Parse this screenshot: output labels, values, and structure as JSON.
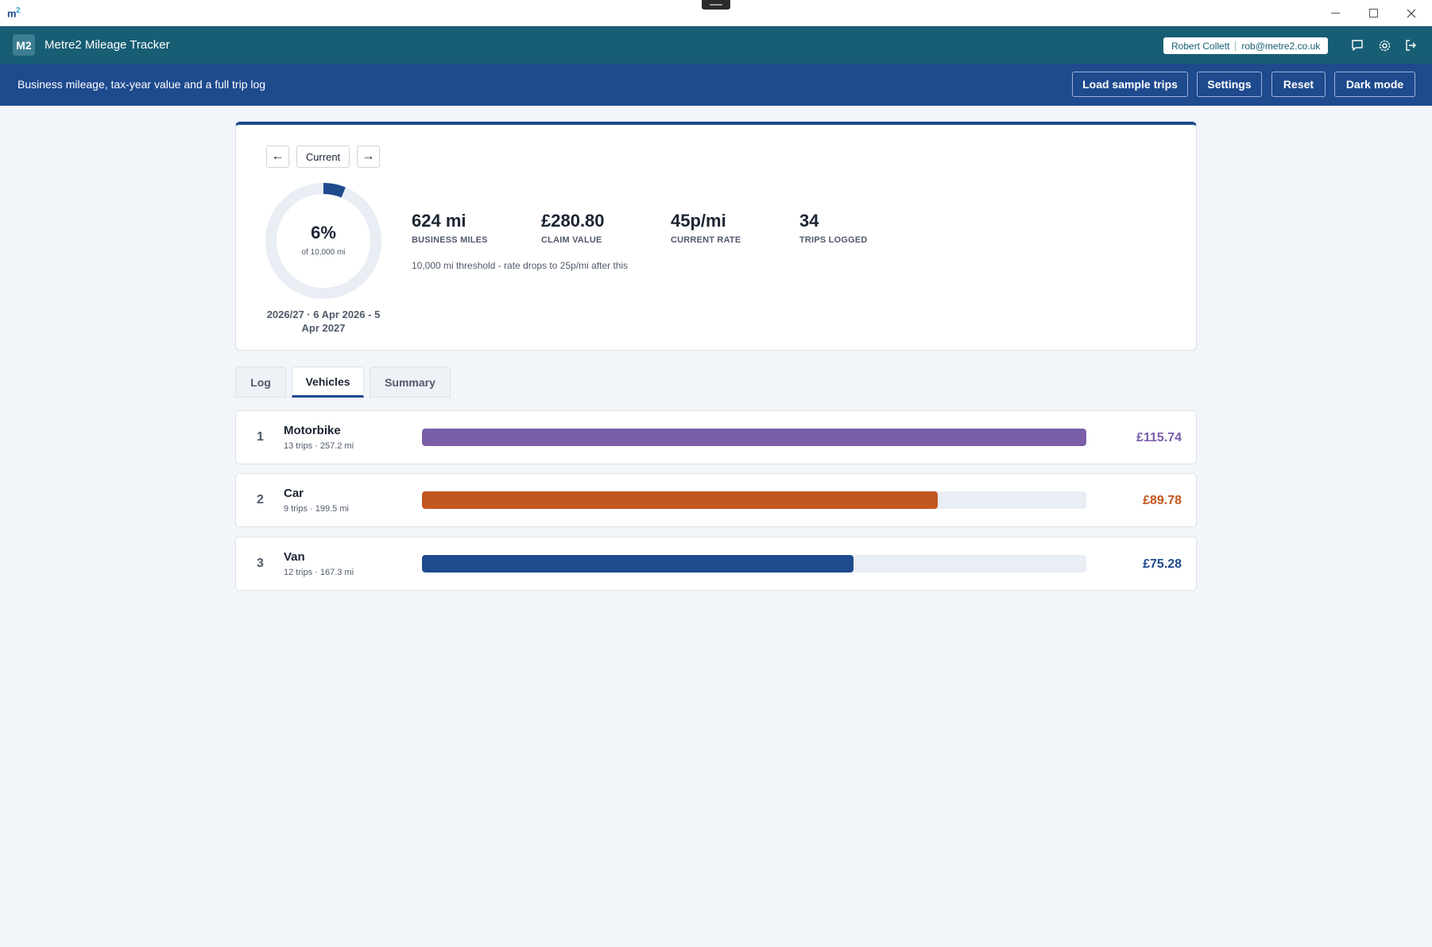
{
  "window": {
    "logo_main": "m",
    "logo_sup": "2"
  },
  "header": {
    "badge": "M2",
    "title": "Metre2 Mileage Tracker",
    "user_name": "Robert Collett",
    "user_email": "rob@metre2.co.uk",
    "icons": [
      "chat-icon",
      "gear-icon",
      "logout-icon"
    ]
  },
  "subbar": {
    "tagline": "Business mileage, tax-year value and a full trip log",
    "buttons": {
      "load": "Load sample trips",
      "settings": "Settings",
      "reset": "Reset",
      "dark": "Dark mode"
    }
  },
  "period_nav": {
    "prev": "←",
    "current": "Current",
    "next": "→"
  },
  "progress": {
    "percent_label": "6%",
    "fraction": 0.0624,
    "of_label": "of 10,000 mi",
    "period": "2026/27 · 6 Apr 2026 - 5 Apr 2027"
  },
  "stats": [
    {
      "value": "624 mi",
      "label": "BUSINESS MILES"
    },
    {
      "value": "£280.80",
      "label": "CLAIM VALUE"
    },
    {
      "value": "45p/mi",
      "label": "CURRENT RATE"
    },
    {
      "value": "34",
      "label": "TRIPS LOGGED"
    }
  ],
  "threshold_note": "10,000 mi threshold - rate drops to 25p/mi after this",
  "tabs": {
    "log": "Log",
    "vehicles": "Vehicles",
    "summary": "Summary",
    "active": "vehicles"
  },
  "vehicles": [
    {
      "rank": "1",
      "name": "Motorbike",
      "meta": "13 trips · 257.2 mi",
      "amount": "£115.74",
      "share": 1.0,
      "color": "#7b5ea8"
    },
    {
      "rank": "2",
      "name": "Car",
      "meta": "9 trips · 199.5 mi",
      "amount": "£89.78",
      "share": 0.776,
      "color": "#c2571f"
    },
    {
      "rank": "3",
      "name": "Van",
      "meta": "12 trips · 167.3 mi",
      "amount": "£75.28",
      "share": 0.65,
      "color": "#1e4a8e"
    }
  ],
  "colors": {
    "header": "#175e74",
    "subbar": "#1e4a8e",
    "ring_fill": "#1e4a8e",
    "ring_track": "#e9edf4"
  }
}
